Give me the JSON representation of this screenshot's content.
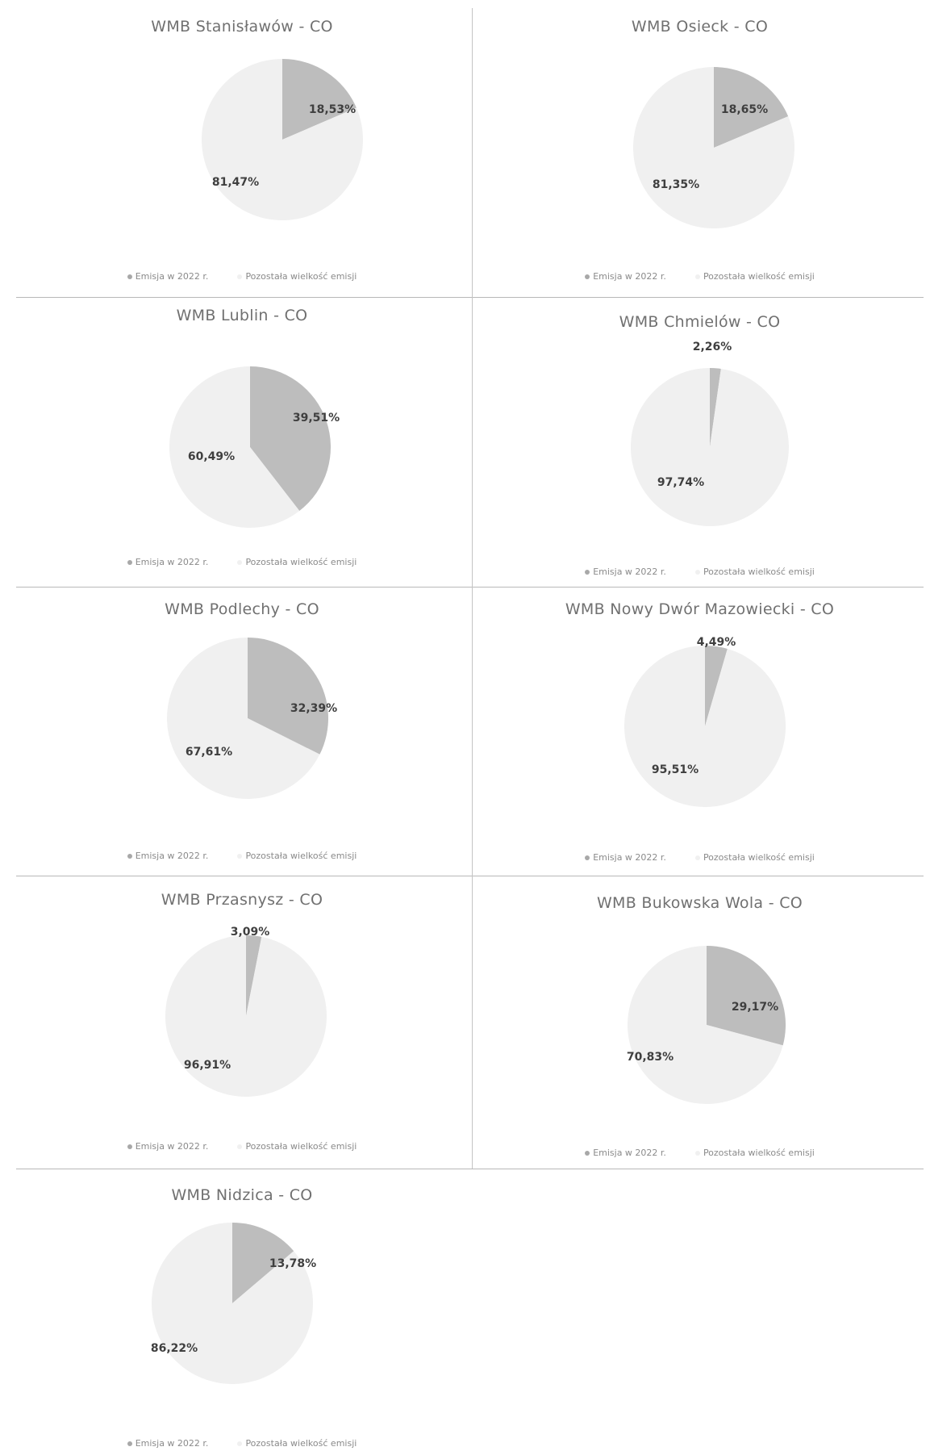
{
  "colors": {
    "emisja": "#bdbdbd",
    "pozostala": "#f0f0f0",
    "emisja_dark": "#a8a8a8"
  },
  "legend": {
    "emisja": "Emisja w 2022 r.",
    "pozostala": "Pozostała wielkość emisji"
  },
  "chart_data": [
    {
      "type": "pie",
      "title": "WMB Stanisławów - CO",
      "labels": [
        "Emisja w 2022 r.",
        "Pozostała wielkość emisji"
      ],
      "values": [
        18.53,
        81.47
      ],
      "value_labels": [
        "18,53%",
        "81,47%"
      ]
    },
    {
      "type": "pie",
      "title": "WMB Osieck - CO",
      "labels": [
        "Emisja w 2022 r.",
        "Pozostała wielkość emisji"
      ],
      "values": [
        18.65,
        81.35
      ],
      "value_labels": [
        "18,65%",
        "81,35%"
      ]
    },
    {
      "type": "pie",
      "title": "WMB Lublin - CO",
      "labels": [
        "Emisja w 2022 r.",
        "Pozostała wielkość emisji"
      ],
      "values": [
        39.51,
        60.49
      ],
      "value_labels": [
        "39,51%",
        "60,49%"
      ]
    },
    {
      "type": "pie",
      "title": "WMB Chmielów - CO",
      "labels": [
        "Emisja w 2022 r.",
        "Pozostała wielkość emisji"
      ],
      "values": [
        2.26,
        97.74
      ],
      "value_labels": [
        "2,26%",
        "97,74%"
      ]
    },
    {
      "type": "pie",
      "title": "WMB Podlechy - CO",
      "labels": [
        "Emisja w 2022 r.",
        "Pozostała wielkość emisji"
      ],
      "values": [
        32.39,
        67.61
      ],
      "value_labels": [
        "32,39%",
        "67,61%"
      ]
    },
    {
      "type": "pie",
      "title": "WMB Nowy Dwór Mazowiecki - CO",
      "labels": [
        "Emisja w 2022 r.",
        "Pozostała wielkość emisji"
      ],
      "values": [
        4.49,
        95.51
      ],
      "value_labels": [
        "4,49%",
        "95,51%"
      ]
    },
    {
      "type": "pie",
      "title": "WMB Przasnysz - CO",
      "labels": [
        "Emisja w 2022 r.",
        "Pozostała wielkość emisji"
      ],
      "values": [
        3.09,
        96.91
      ],
      "value_labels": [
        "3,09%",
        "96,91%"
      ]
    },
    {
      "type": "pie",
      "title": "WMB Bukowska Wola - CO",
      "labels": [
        "Emisja w 2022 r.",
        "Pozostała wielkość emisji"
      ],
      "values": [
        29.17,
        70.83
      ],
      "value_labels": [
        "29,17%",
        "70,83%"
      ]
    },
    {
      "type": "pie",
      "title": "WMB Nidzica - CO",
      "labels": [
        "Emisja w 2022 r.",
        "Pozostała wielkość emisji"
      ],
      "values": [
        13.78,
        86.22
      ],
      "value_labels": [
        "13,78%",
        "86,22%"
      ]
    }
  ]
}
